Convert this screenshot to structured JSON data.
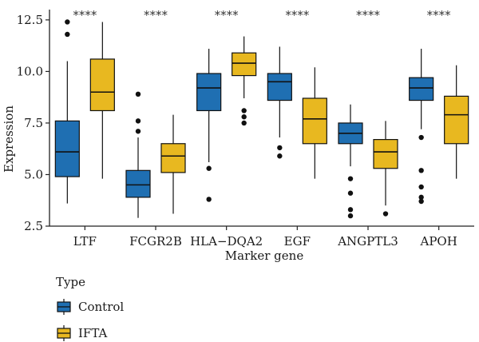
{
  "chart_data": {
    "type": "boxplot",
    "xlabel": "Marker gene",
    "ylabel": "Expression",
    "ylim": [
      2.5,
      13.0
    ],
    "yticks": [
      2.5,
      5.0,
      7.5,
      10.0,
      12.5
    ],
    "ytick_labels": [
      "2.5",
      "5.0",
      "7.5",
      "10.0",
      "12.5"
    ],
    "categories": [
      "LTF",
      "FCGR2B",
      "HLA−DQA2",
      "EGF",
      "ANGPTL3",
      "APOH"
    ],
    "significance": [
      "****",
      "****",
      "****",
      "****",
      "****",
      "****"
    ],
    "legend": {
      "title": "Type",
      "position": "bottom-left"
    },
    "series": [
      {
        "name": "Control",
        "color": "#1f6fb2",
        "boxes": [
          {
            "whislo": 3.6,
            "q1": 4.9,
            "med": 6.1,
            "q3": 7.6,
            "whishi": 10.5,
            "fliers": [
              11.8,
              12.4
            ]
          },
          {
            "whislo": 2.9,
            "q1": 3.9,
            "med": 4.5,
            "q3": 5.2,
            "whishi": 6.8,
            "fliers": [
              7.1,
              7.6,
              8.9
            ]
          },
          {
            "whislo": 5.6,
            "q1": 8.1,
            "med": 9.2,
            "q3": 9.9,
            "whishi": 11.1,
            "fliers": [
              3.8,
              5.3
            ]
          },
          {
            "whislo": 6.8,
            "q1": 8.6,
            "med": 9.5,
            "q3": 9.9,
            "whishi": 11.2,
            "fliers": [
              5.9,
              6.3
            ]
          },
          {
            "whislo": 5.4,
            "q1": 6.5,
            "med": 7.0,
            "q3": 7.5,
            "whishi": 8.4,
            "fliers": [
              3.0,
              3.3,
              4.1,
              4.8
            ]
          },
          {
            "whislo": 7.2,
            "q1": 8.6,
            "med": 9.2,
            "q3": 9.7,
            "whishi": 11.1,
            "fliers": [
              3.7,
              3.9,
              4.4,
              5.2,
              6.8
            ]
          }
        ]
      },
      {
        "name": "IFTA",
        "color": "#e8b820",
        "boxes": [
          {
            "whislo": 4.8,
            "q1": 8.1,
            "med": 9.0,
            "q3": 10.6,
            "whishi": 12.4,
            "fliers": []
          },
          {
            "whislo": 3.1,
            "q1": 5.1,
            "med": 5.9,
            "q3": 6.5,
            "whishi": 7.9,
            "fliers": []
          },
          {
            "whislo": 8.7,
            "q1": 9.8,
            "med": 10.4,
            "q3": 10.9,
            "whishi": 11.7,
            "fliers": [
              7.5,
              7.8,
              8.1
            ]
          },
          {
            "whislo": 4.8,
            "q1": 6.5,
            "med": 7.7,
            "q3": 8.7,
            "whishi": 10.2,
            "fliers": []
          },
          {
            "whislo": 3.5,
            "q1": 5.3,
            "med": 6.1,
            "q3": 6.7,
            "whishi": 7.6,
            "fliers": [
              3.1
            ]
          },
          {
            "whislo": 4.8,
            "q1": 6.5,
            "med": 7.9,
            "q3": 8.8,
            "whishi": 10.3,
            "fliers": []
          }
        ]
      }
    ]
  }
}
